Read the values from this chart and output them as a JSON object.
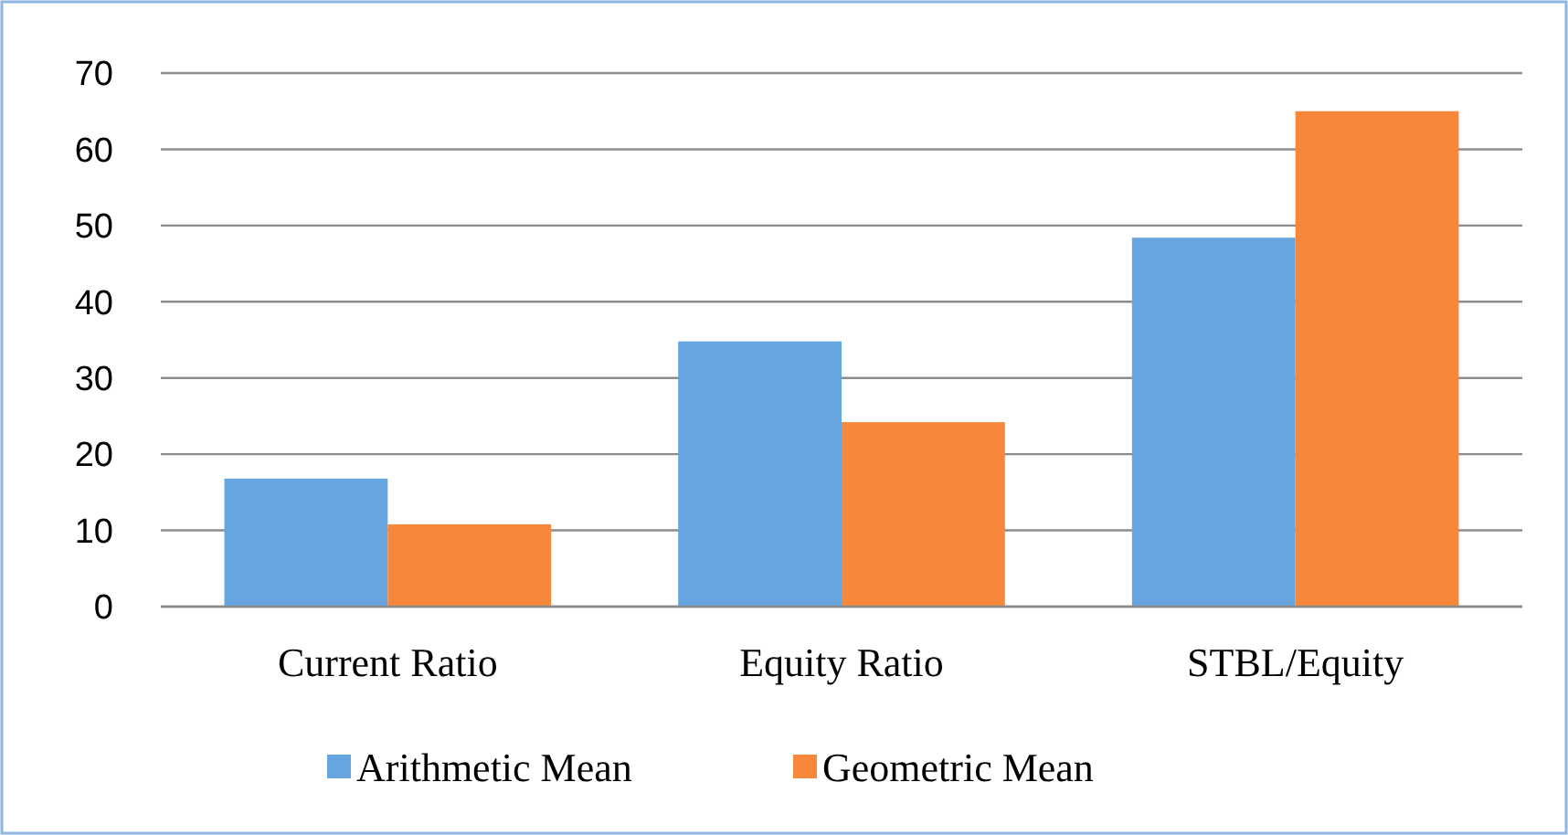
{
  "chart_data": {
    "type": "bar",
    "categories": [
      "Current Ratio",
      "Equity Ratio",
      "STBL/Equity"
    ],
    "series": [
      {
        "name": "Arithmetic Mean",
        "color": "#66a5e0",
        "values": [
          16.8,
          34.8,
          48.4
        ]
      },
      {
        "name": "Geometric Mean",
        "color": "#f7883a",
        "values": [
          10.8,
          24.2,
          65
        ]
      }
    ],
    "ylim": [
      0,
      70
    ],
    "yticks": [
      0,
      10,
      20,
      30,
      40,
      50,
      60,
      70
    ],
    "grid": "y",
    "legend": "bottom"
  }
}
